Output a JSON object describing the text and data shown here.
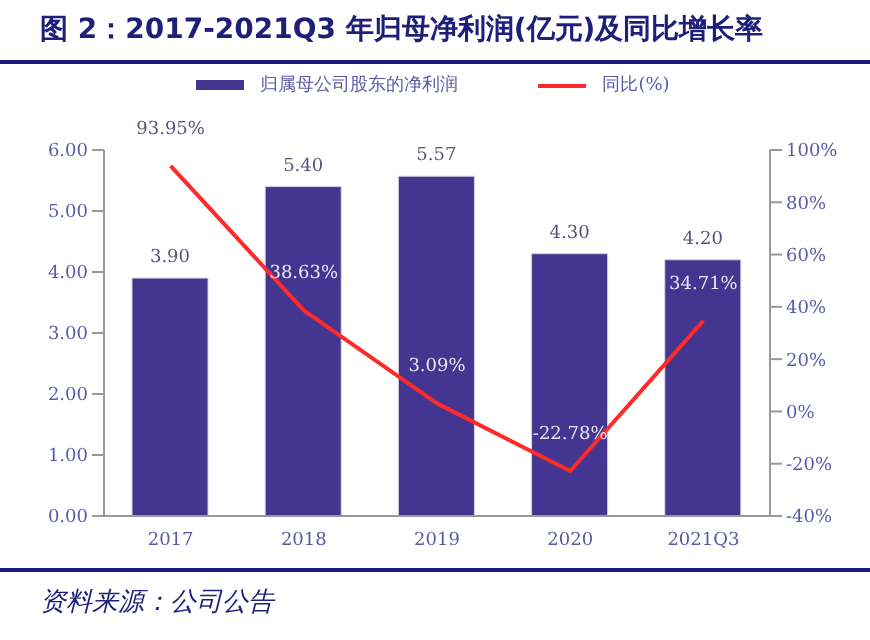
{
  "chart_data": {
    "type": "bar",
    "title": "图 2：2017-2021Q3 年归母净利润(亿元)及同比增长率",
    "categories": [
      "2017",
      "2018",
      "2019",
      "2020",
      "2021Q3"
    ],
    "series": [
      {
        "name": "归属母公司股东的净利润",
        "color": "#433590",
        "values": [
          3.9,
          5.4,
          5.57,
          4.3,
          4.2
        ],
        "value_labels": [
          "3.90",
          "5.40",
          "5.57",
          "4.30",
          "4.20"
        ]
      },
      {
        "name": "同比(%)",
        "type": "line",
        "axis": "y2",
        "color": "#ff2a2a",
        "values": [
          93.95,
          38.63,
          3.09,
          -22.78,
          34.71
        ],
        "value_labels": [
          "93.95%",
          "38.63%",
          "3.09%",
          "-22.78%",
          "34.71%"
        ]
      }
    ],
    "ylim": [
      0,
      6
    ],
    "yticks": [
      {
        "value": 0,
        "label": "0.00"
      },
      {
        "value": 1,
        "label": "1.00"
      },
      {
        "value": 2,
        "label": "2.00"
      },
      {
        "value": 3,
        "label": "3.00"
      },
      {
        "value": 4,
        "label": "4.00"
      },
      {
        "value": 5,
        "label": "5.00"
      },
      {
        "value": 6,
        "label": "6.00"
      }
    ],
    "y2lim": [
      -40,
      100
    ],
    "y2ticks": [
      {
        "value": -40,
        "label": "-40%"
      },
      {
        "value": -20,
        "label": "-20%"
      },
      {
        "value": 0,
        "label": "0%"
      },
      {
        "value": 20,
        "label": "20%"
      },
      {
        "value": 40,
        "label": "40%"
      },
      {
        "value": 60,
        "label": "60%"
      },
      {
        "value": 80,
        "label": "80%"
      },
      {
        "value": 100,
        "label": "100%"
      }
    ],
    "legend": "top",
    "grid": false,
    "marker": "none",
    "line_style": "solid",
    "annotations": [
      "资料来源：公司公告"
    ]
  }
}
